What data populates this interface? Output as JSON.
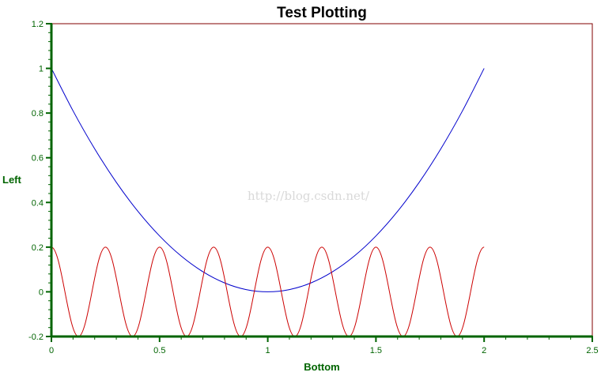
{
  "chart_data": {
    "type": "line",
    "title": "Test Plotting",
    "xlabel": "Bottom",
    "ylabel": "Left",
    "xlim": [
      0,
      2.5
    ],
    "ylim": [
      -0.2,
      1.2
    ],
    "x_ticks": [
      0,
      0.5,
      1,
      1.5,
      2,
      2.5
    ],
    "x_tick_labels": [
      "0",
      "0.5",
      "1",
      "1.5",
      "2",
      "2.5"
    ],
    "y_ticks": [
      -0.2,
      0,
      0.2,
      0.4,
      0.6,
      0.8,
      1,
      1.2
    ],
    "y_tick_labels": [
      "-0.2",
      "0",
      "0.2",
      "0.4",
      "0.6",
      "0.8",
      "1",
      "1.2"
    ],
    "grid": false,
    "legend": "none",
    "series": [
      {
        "color": "#0000cc",
        "x": [
          0,
          0.1,
          0.2,
          0.3,
          0.4,
          0.5,
          0.6,
          0.7,
          0.8,
          0.9,
          1.0,
          1.1,
          1.2,
          1.3,
          1.4,
          1.5,
          1.6,
          1.7,
          1.8,
          1.9,
          2.0
        ],
        "y": [
          1.0,
          0.81,
          0.64,
          0.49,
          0.36,
          0.25,
          0.16,
          0.09,
          0.04,
          0.01,
          0.0,
          0.01,
          0.04,
          0.09,
          0.16,
          0.25,
          0.36,
          0.49,
          0.64,
          0.81,
          1.0
        ]
      },
      {
        "color": "#cc0000",
        "x": [
          0,
          0.125,
          0.25,
          0.375,
          0.5,
          0.625,
          0.75,
          0.875,
          1.0,
          1.125,
          1.25,
          1.375,
          1.5,
          1.625,
          1.75,
          1.875,
          2.0
        ],
        "y": [
          0.2,
          -0.2,
          0.2,
          -0.2,
          0.2,
          -0.2,
          0.2,
          -0.2,
          0.2,
          -0.2,
          0.2,
          -0.2,
          0.2,
          -0.2,
          0.2,
          -0.2,
          0.2
        ]
      }
    ],
    "colors": {
      "frame": "#800000",
      "axes": "#006400",
      "title": "#000000"
    }
  },
  "watermark": "http://blog.csdn.net/"
}
